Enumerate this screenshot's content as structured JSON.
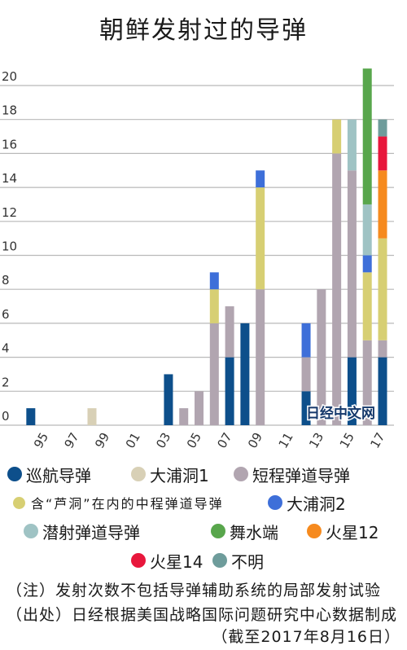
{
  "watermark": "日经中文网",
  "notes": {
    "note": "（注）发射次数不包括导弹辅助系统的局部发射试验",
    "source": "（出处）日经根据美国战略国际问题研究中心数据制成",
    "as_of": "（截至2017年8月16日）"
  },
  "chart_data": {
    "type": "bar",
    "stacked": true,
    "title": "朝鲜发射过的导弹",
    "xlabel": "",
    "ylabel": "",
    "x": [
      1994,
      1995,
      1996,
      1997,
      1998,
      1999,
      2000,
      2001,
      2002,
      2003,
      2004,
      2005,
      2006,
      2007,
      2008,
      2009,
      2010,
      2011,
      2012,
      2013,
      2014,
      2015,
      2016,
      2017
    ],
    "x_ticks": [
      1995,
      1997,
      1999,
      2001,
      2003,
      2005,
      2007,
      2009,
      2011,
      2013,
      2015,
      2017
    ],
    "x_tick_labels": [
      "95",
      "97",
      "99",
      "01",
      "03",
      "05",
      "07",
      "09",
      "11",
      "13",
      "15",
      "17"
    ],
    "y_ticks": [
      0,
      2,
      4,
      6,
      8,
      10,
      12,
      14,
      16,
      18,
      20
    ],
    "ylim": [
      0,
      21
    ],
    "grid": "horizontal",
    "legend_position": "bottom",
    "series": [
      {
        "name": "巡航导弹",
        "color": "#0d4f8b",
        "values": [
          1,
          0,
          0,
          0,
          0,
          0,
          0,
          0,
          0,
          3,
          0,
          0,
          0,
          4,
          6,
          0,
          0,
          0,
          2,
          0,
          0,
          4,
          0,
          4
        ]
      },
      {
        "name": "大浦洞1",
        "color": "#d8d0b6",
        "values": [
          0,
          0,
          0,
          0,
          1,
          0,
          0,
          0,
          0,
          0,
          0,
          0,
          0,
          0,
          0,
          0,
          0,
          0,
          0,
          0,
          0,
          0,
          0,
          0
        ]
      },
      {
        "name": "短程弹道导弹",
        "color": "#b1a5b0",
        "values": [
          0,
          0,
          0,
          0,
          0,
          0,
          0,
          0,
          0,
          0,
          1,
          2,
          6,
          3,
          0,
          8,
          0,
          0,
          2,
          8,
          16,
          11,
          5,
          1
        ]
      },
      {
        "name": "含“芦洞”在内的中程弹道导弹",
        "color": "#d7cf73",
        "values": [
          0,
          0,
          0,
          0,
          0,
          0,
          0,
          0,
          0,
          0,
          0,
          0,
          2,
          0,
          0,
          6,
          0,
          0,
          0,
          0,
          2,
          0,
          4,
          6
        ]
      },
      {
        "name": "大浦洞2",
        "color": "#3e6fd9",
        "values": [
          0,
          0,
          0,
          0,
          0,
          0,
          0,
          0,
          0,
          0,
          0,
          0,
          1,
          0,
          0,
          1,
          0,
          0,
          2,
          0,
          0,
          0,
          1,
          0
        ]
      },
      {
        "name": "潜射弹道导弹",
        "color": "#9fc3c4",
        "values": [
          0,
          0,
          0,
          0,
          0,
          0,
          0,
          0,
          0,
          0,
          0,
          0,
          0,
          0,
          0,
          0,
          0,
          0,
          0,
          0,
          0,
          3,
          3,
          0
        ]
      },
      {
        "name": "舞水端",
        "color": "#58a64c",
        "values": [
          0,
          0,
          0,
          0,
          0,
          0,
          0,
          0,
          0,
          0,
          0,
          0,
          0,
          0,
          0,
          0,
          0,
          0,
          0,
          0,
          0,
          0,
          8,
          0
        ]
      },
      {
        "name": "火星12",
        "color": "#f68a1e",
        "values": [
          0,
          0,
          0,
          0,
          0,
          0,
          0,
          0,
          0,
          0,
          0,
          0,
          0,
          0,
          0,
          0,
          0,
          0,
          0,
          0,
          0,
          0,
          0,
          4
        ]
      },
      {
        "name": "火星14",
        "color": "#e8173c",
        "values": [
          0,
          0,
          0,
          0,
          0,
          0,
          0,
          0,
          0,
          0,
          0,
          0,
          0,
          0,
          0,
          0,
          0,
          0,
          0,
          0,
          0,
          0,
          0,
          2
        ]
      },
      {
        "name": "不明",
        "color": "#6e9c9b",
        "values": [
          0,
          0,
          0,
          0,
          0,
          0,
          0,
          0,
          0,
          0,
          0,
          0,
          0,
          0,
          0,
          0,
          0,
          0,
          0,
          0,
          0,
          0,
          0,
          1
        ]
      }
    ]
  }
}
